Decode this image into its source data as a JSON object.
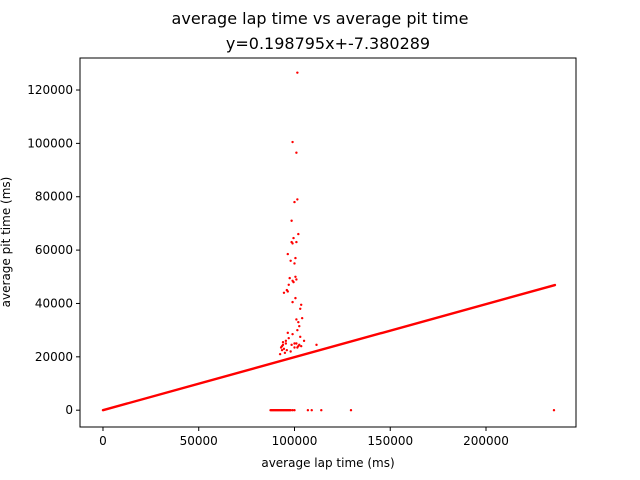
{
  "chart_data": {
    "type": "scatter",
    "title": "average lap time vs average pit time",
    "subtitle": "y=0.198795x+-7.380289",
    "xlabel": "average lap time (ms)",
    "ylabel": "average pit time (ms)",
    "xlim": [
      -12000,
      247000
    ],
    "ylim": [
      -6300,
      132000
    ],
    "xticks": [
      0,
      50000,
      100000,
      150000,
      200000
    ],
    "yticks": [
      0,
      20000,
      40000,
      60000,
      80000,
      100000,
      120000
    ],
    "grid": false,
    "marker_color": "#ff0000",
    "fit_line": {
      "slope": 0.198795,
      "intercept": -7.380289,
      "x_range": [
        0,
        236000
      ]
    },
    "series": [
      {
        "x": [
          101500,
          99000,
          101000,
          101500,
          100000,
          98500,
          102000,
          99500,
          101000,
          98500,
          99000,
          96500,
          100500,
          98000,
          100000,
          100500,
          97500,
          101000,
          99000,
          99500,
          97000,
          96000,
          96500,
          94500,
          100500,
          99000,
          103500,
          103000,
          104000,
          101000,
          102000,
          102500,
          101500,
          96500,
          99000,
          103000,
          105000,
          111500,
          101000,
          102500,
          103500,
          100000,
          101500,
          102000,
          95500,
          94000,
          93500,
          94500,
          96000,
          98000,
          95000,
          93500,
          92500,
          93000,
          94000,
          95500,
          97000,
          98500,
          100000,
          87500,
          88000,
          88500,
          89000,
          89500,
          90000,
          90500,
          91000,
          91500,
          92000,
          92500,
          93000,
          93500,
          94000,
          94500,
          95000,
          95500,
          96000,
          96500,
          97000,
          97500,
          98000,
          99000,
          100000,
          107000,
          109000,
          114000,
          129500,
          235500
        ],
        "y": [
          126500,
          100500,
          96500,
          79000,
          78000,
          71000,
          66000,
          64500,
          63000,
          63000,
          62500,
          58500,
          57000,
          56000,
          55000,
          50000,
          49500,
          49000,
          48500,
          48000,
          47000,
          45000,
          44500,
          44000,
          42000,
          40500,
          39500,
          38000,
          34500,
          34000,
          33000,
          31500,
          30000,
          29000,
          28500,
          27500,
          26000,
          24500,
          25000,
          24500,
          24000,
          23500,
          23500,
          24000,
          25000,
          25500,
          24000,
          23000,
          22500,
          22000,
          21500,
          22500,
          21000,
          23500,
          24500,
          26000,
          27000,
          24500,
          25000,
          0,
          0,
          0,
          0,
          0,
          0,
          0,
          0,
          0,
          0,
          0,
          0,
          0,
          0,
          0,
          0,
          0,
          0,
          0,
          0,
          0,
          0,
          0,
          0,
          0,
          0,
          0,
          0,
          0
        ]
      }
    ]
  }
}
